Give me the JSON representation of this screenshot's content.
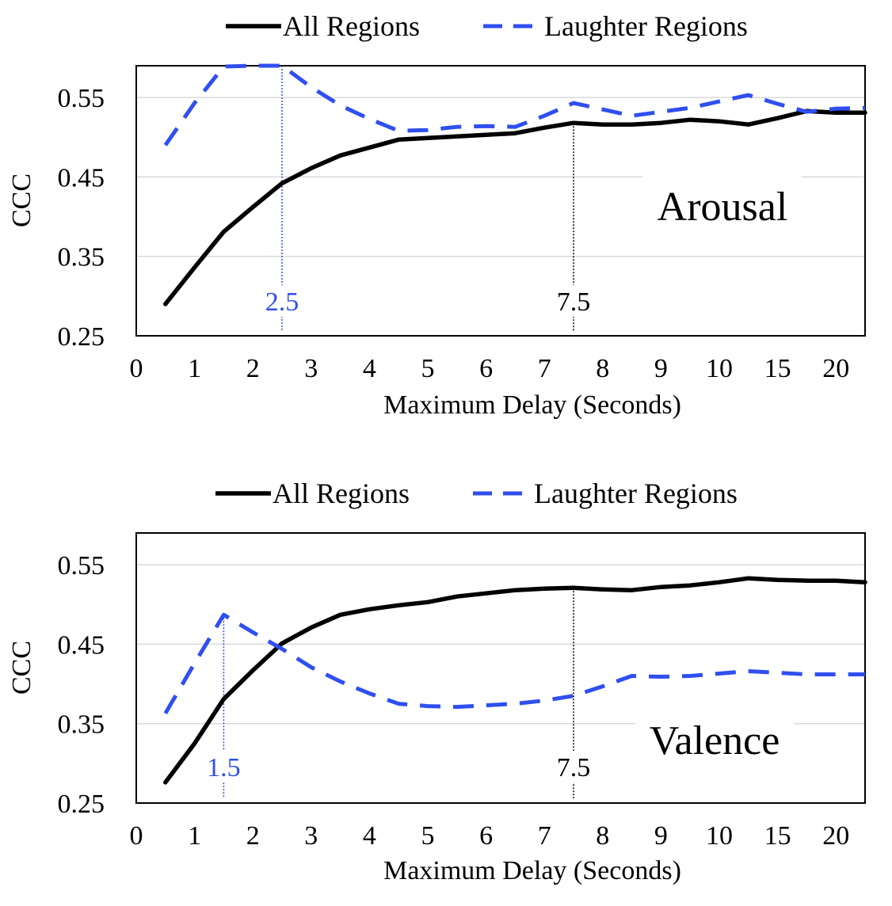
{
  "chart_data": [
    {
      "type": "line",
      "title": "",
      "annotation": "Arousal",
      "xlabel": "Maximum Delay (Seconds)",
      "ylabel": "CCC",
      "ylim": [
        0.25,
        0.59
      ],
      "yticks": [
        "0.25",
        "0.35",
        "0.45",
        "0.55"
      ],
      "yticks_values": [
        0.25,
        0.35,
        0.45,
        0.55
      ],
      "xtick_labels": [
        "0",
        "1",
        "2",
        "3",
        "4",
        "5",
        "6",
        "7",
        "8",
        "9",
        "10",
        "15",
        "20"
      ],
      "x_index_range": [
        0,
        12.5
      ],
      "grid": true,
      "legend": [
        "All Regions",
        "Laughter Regions"
      ],
      "legend_position": "top",
      "series": [
        {
          "name": "All Regions",
          "color": "#000000",
          "style": "solid",
          "x": [
            0.5,
            1,
            1.5,
            2,
            2.5,
            3,
            3.5,
            4,
            4.5,
            5,
            5.5,
            6,
            6.5,
            7,
            7.5,
            8,
            8.5,
            9,
            9.5,
            10,
            10.5,
            11,
            11.5,
            12,
            12.5
          ],
          "values": [
            0.29,
            0.336,
            0.381,
            0.412,
            0.442,
            0.461,
            0.477,
            0.487,
            0.497,
            0.499,
            0.501,
            0.503,
            0.505,
            0.512,
            0.518,
            0.516,
            0.516,
            0.518,
            0.522,
            0.52,
            0.516,
            0.524,
            0.533,
            0.531,
            0.531
          ]
        },
        {
          "name": "Laughter Regions",
          "color": "#2f4ff0",
          "style": "dashed",
          "x": [
            0.5,
            1,
            1.5,
            2,
            2.5,
            3,
            3.5,
            4,
            4.5,
            5,
            5.5,
            6,
            6.5,
            7,
            7.5,
            8,
            8.5,
            9,
            9.5,
            10,
            10.5,
            11,
            11.5,
            12,
            12.5
          ],
          "values": [
            0.49,
            0.543,
            0.589,
            0.59,
            0.59,
            0.563,
            0.54,
            0.523,
            0.508,
            0.509,
            0.513,
            0.514,
            0.513,
            0.527,
            0.543,
            0.535,
            0.527,
            0.532,
            0.537,
            0.545,
            0.553,
            0.542,
            0.532,
            0.536,
            0.537
          ]
        }
      ],
      "markers": [
        {
          "x": 2.5,
          "label": "2.5",
          "color": "#2f4ff0"
        },
        {
          "x": 7.5,
          "label": "7.5",
          "color": "#000000"
        }
      ]
    },
    {
      "type": "line",
      "title": "",
      "annotation": "Valence",
      "xlabel": "Maximum Delay (Seconds)",
      "ylabel": "CCC",
      "ylim": [
        0.25,
        0.59
      ],
      "yticks": [
        "0.25",
        "0.35",
        "0.45",
        "0.55"
      ],
      "yticks_values": [
        0.25,
        0.35,
        0.45,
        0.55
      ],
      "xtick_labels": [
        "0",
        "1",
        "2",
        "3",
        "4",
        "5",
        "6",
        "7",
        "8",
        "9",
        "10",
        "15",
        "20"
      ],
      "x_index_range": [
        0,
        12.5
      ],
      "grid": true,
      "legend": [
        "All Regions",
        "Laughter Regions"
      ],
      "legend_position": "top",
      "series": [
        {
          "name": "All Regions",
          "color": "#000000",
          "style": "solid",
          "x": [
            0.5,
            1,
            1.5,
            2,
            2.5,
            3,
            3.5,
            4,
            4.5,
            5,
            5.5,
            6,
            6.5,
            7,
            7.5,
            8,
            8.5,
            9,
            9.5,
            10,
            10.5,
            11,
            11.5,
            12,
            12.5
          ],
          "values": [
            0.276,
            0.325,
            0.381,
            0.417,
            0.451,
            0.471,
            0.487,
            0.494,
            0.499,
            0.503,
            0.51,
            0.514,
            0.518,
            0.52,
            0.521,
            0.519,
            0.518,
            0.522,
            0.524,
            0.528,
            0.533,
            0.531,
            0.53,
            0.53,
            0.528
          ]
        },
        {
          "name": "Laughter Regions",
          "color": "#2f4ff0",
          "style": "dashed",
          "x": [
            0.5,
            1,
            1.5,
            2,
            2.5,
            3,
            3.5,
            4,
            4.5,
            5,
            5.5,
            6,
            6.5,
            7,
            7.5,
            8,
            8.5,
            9,
            9.5,
            10,
            10.5,
            11,
            11.5,
            12,
            12.5
          ],
          "values": [
            0.363,
            0.426,
            0.487,
            0.465,
            0.444,
            0.421,
            0.403,
            0.388,
            0.375,
            0.372,
            0.371,
            0.373,
            0.375,
            0.379,
            0.385,
            0.397,
            0.41,
            0.409,
            0.41,
            0.413,
            0.416,
            0.414,
            0.412,
            0.412,
            0.412
          ]
        }
      ],
      "markers": [
        {
          "x": 1.5,
          "label": "1.5",
          "color": "#2f4ff0"
        },
        {
          "x": 7.5,
          "label": "7.5",
          "color": "#000000"
        }
      ]
    }
  ]
}
